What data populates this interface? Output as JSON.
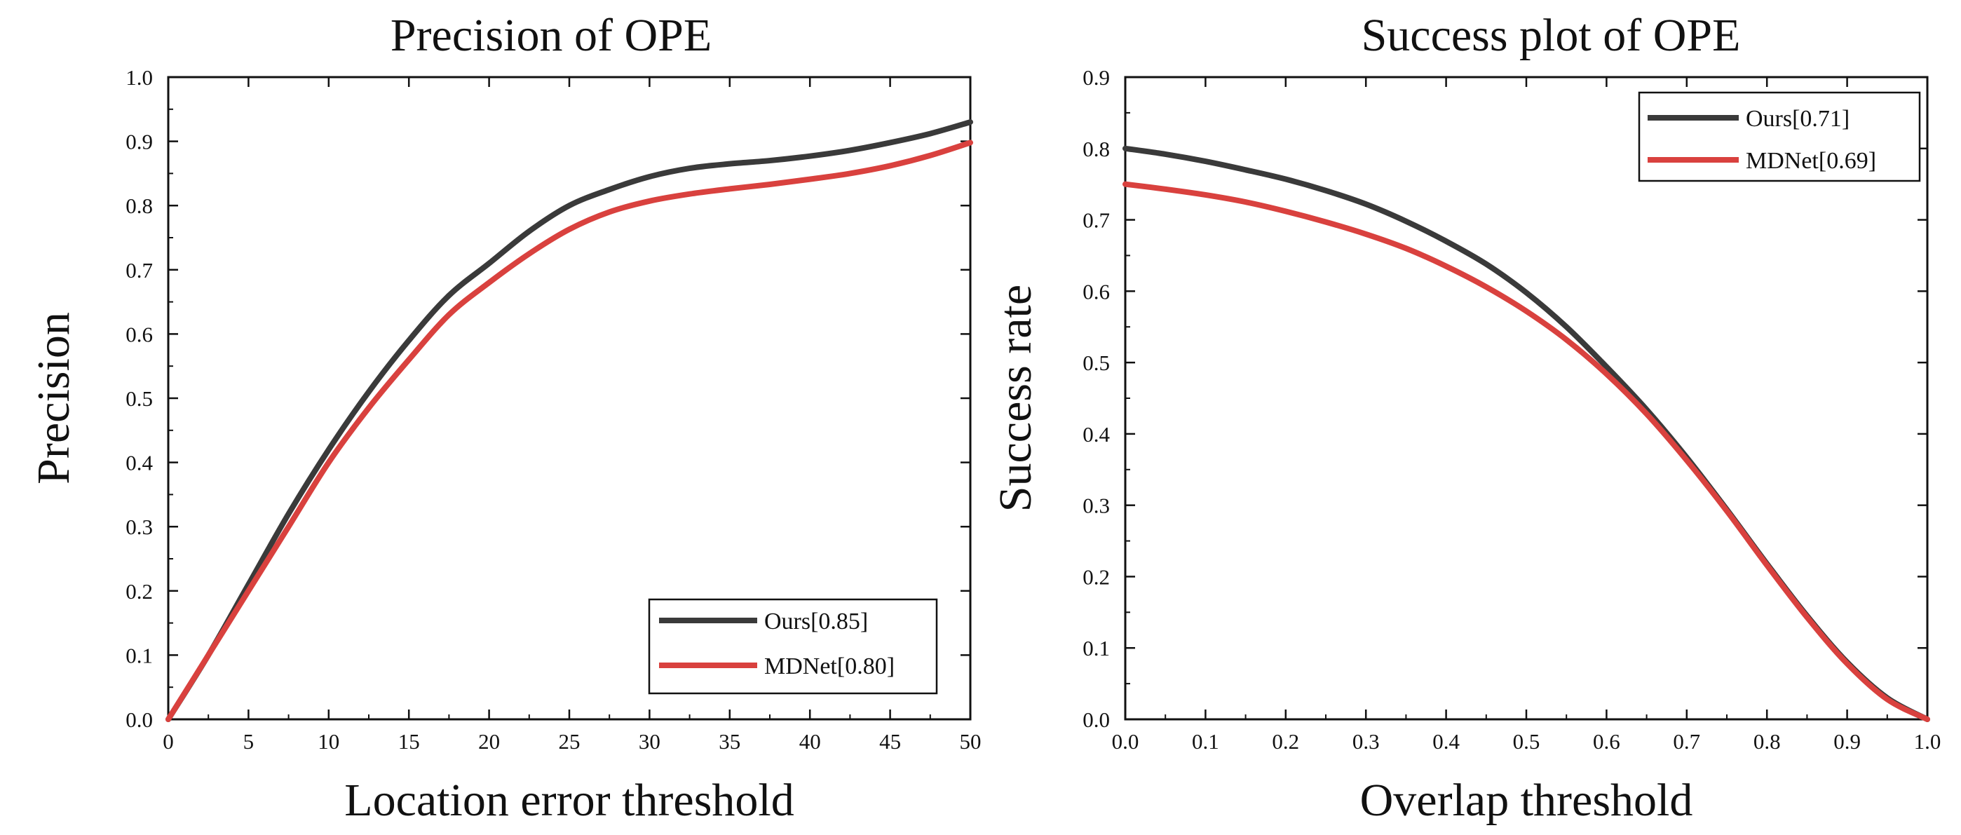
{
  "chart_data": [
    {
      "type": "line",
      "title": "Precision of OPE",
      "xlabel": "Location error threshold",
      "ylabel": "Precision",
      "xlim": [
        0,
        50
      ],
      "ylim": [
        0.0,
        1.0
      ],
      "xticks": [
        0,
        5,
        10,
        15,
        20,
        25,
        30,
        35,
        40,
        45,
        50
      ],
      "xtick_labels": [
        "0",
        "5",
        "10",
        "15",
        "20",
        "25",
        "30",
        "35",
        "40",
        "45",
        "50"
      ],
      "yticks": [
        0.0,
        0.1,
        0.2,
        0.3,
        0.4,
        0.5,
        0.6,
        0.7,
        0.8,
        0.9,
        1.0
      ],
      "ytick_labels": [
        "0.0",
        "0.1",
        "0.2",
        "0.3",
        "0.4",
        "0.5",
        "0.6",
        "0.7",
        "0.8",
        "0.9",
        "1.0"
      ],
      "grid": false,
      "legend_position": "bottom-right",
      "series": [
        {
          "name": "Ours[0.85]",
          "color": "#3a3a3a",
          "x": [
            0,
            2.5,
            5,
            7.5,
            10,
            12.5,
            15,
            17.5,
            20,
            22.5,
            25,
            27.5,
            30,
            32.5,
            35,
            37.5,
            40,
            42.5,
            45,
            47.5,
            50
          ],
          "y": [
            0.0,
            0.1,
            0.21,
            0.32,
            0.42,
            0.51,
            0.59,
            0.66,
            0.71,
            0.76,
            0.8,
            0.825,
            0.845,
            0.858,
            0.865,
            0.87,
            0.877,
            0.886,
            0.898,
            0.912,
            0.93
          ]
        },
        {
          "name": "MDNet[0.80]",
          "color": "#d9413e",
          "x": [
            0,
            2.5,
            5,
            7.5,
            10,
            12.5,
            15,
            17.5,
            20,
            22.5,
            25,
            27.5,
            30,
            32.5,
            35,
            37.5,
            40,
            42.5,
            45,
            47.5,
            50
          ],
          "y": [
            0.0,
            0.1,
            0.2,
            0.3,
            0.4,
            0.485,
            0.56,
            0.63,
            0.68,
            0.725,
            0.763,
            0.79,
            0.807,
            0.818,
            0.826,
            0.833,
            0.841,
            0.85,
            0.862,
            0.878,
            0.898
          ]
        }
      ]
    },
    {
      "type": "line",
      "title": "Success plot of OPE",
      "xlabel": "Overlap threshold",
      "ylabel": "Success rate",
      "xlim": [
        0.0,
        1.0
      ],
      "ylim": [
        0.0,
        0.9
      ],
      "xticks": [
        0.0,
        0.1,
        0.2,
        0.3,
        0.4,
        0.5,
        0.6,
        0.7,
        0.8,
        0.9,
        1.0
      ],
      "xtick_labels": [
        "0.0",
        "0.1",
        "0.2",
        "0.3",
        "0.4",
        "0.5",
        "0.6",
        "0.7",
        "0.8",
        "0.9",
        "1.0"
      ],
      "yticks": [
        0.0,
        0.1,
        0.2,
        0.3,
        0.4,
        0.5,
        0.6,
        0.7,
        0.8,
        0.9
      ],
      "ytick_labels": [
        "0.0",
        "0.1",
        "0.2",
        "0.3",
        "0.4",
        "0.5",
        "0.6",
        "0.7",
        "0.8",
        "0.9"
      ],
      "grid": false,
      "legend_position": "top-right",
      "series": [
        {
          "name": "Ours[0.71]",
          "color": "#3a3a3a",
          "x": [
            0.0,
            0.05,
            0.1,
            0.15,
            0.2,
            0.25,
            0.3,
            0.35,
            0.4,
            0.45,
            0.5,
            0.55,
            0.6,
            0.65,
            0.7,
            0.75,
            0.8,
            0.85,
            0.9,
            0.95,
            1.0
          ],
          "y": [
            0.8,
            0.792,
            0.782,
            0.77,
            0.757,
            0.741,
            0.722,
            0.698,
            0.67,
            0.638,
            0.598,
            0.55,
            0.494,
            0.434,
            0.367,
            0.294,
            0.218,
            0.145,
            0.08,
            0.03,
            0.0
          ]
        },
        {
          "name": "MDNet[0.69]",
          "color": "#d9413e",
          "x": [
            0.0,
            0.05,
            0.1,
            0.15,
            0.2,
            0.25,
            0.3,
            0.35,
            0.4,
            0.45,
            0.5,
            0.55,
            0.6,
            0.65,
            0.7,
            0.75,
            0.8,
            0.85,
            0.9,
            0.95,
            1.0
          ],
          "y": [
            0.75,
            0.743,
            0.735,
            0.725,
            0.712,
            0.697,
            0.68,
            0.66,
            0.635,
            0.606,
            0.572,
            0.532,
            0.484,
            0.428,
            0.363,
            0.292,
            0.216,
            0.143,
            0.078,
            0.028,
            0.0
          ]
        }
      ]
    }
  ]
}
